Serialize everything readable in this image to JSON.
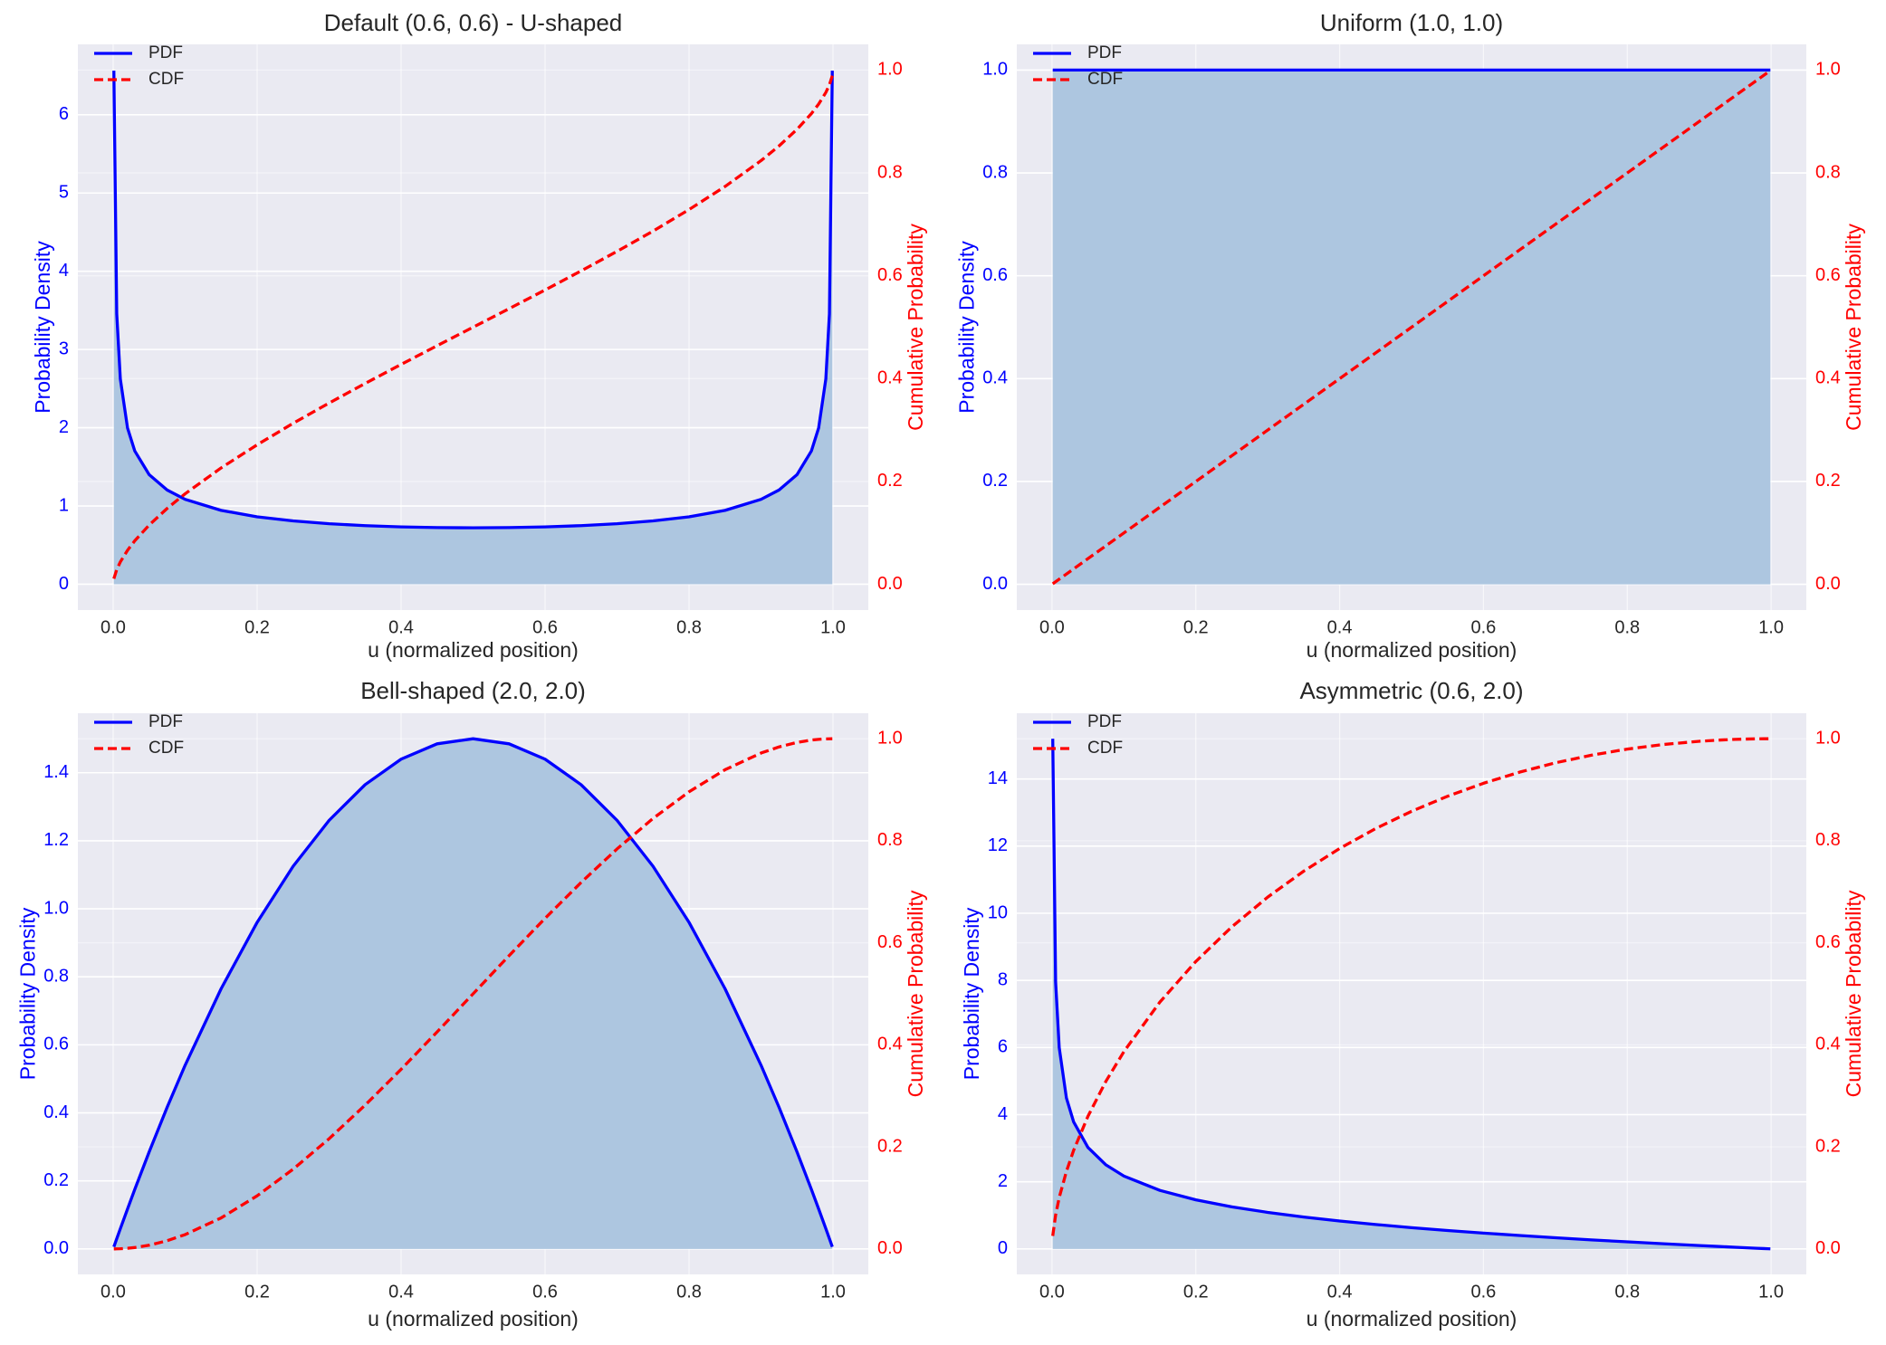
{
  "chart_data": [
    {
      "type": "line",
      "title": "Default (0.6, 0.6) - U-shaped",
      "xlabel": "u (normalized position)",
      "ylabel": "Probability Density",
      "y2label": "Cumulative Probability",
      "x": [
        0.001,
        0.005,
        0.01,
        0.02,
        0.03,
        0.05,
        0.075,
        0.1,
        0.15,
        0.2,
        0.25,
        0.3,
        0.35,
        0.4,
        0.45,
        0.5,
        0.55,
        0.6,
        0.65,
        0.7,
        0.75,
        0.8,
        0.85,
        0.9,
        0.925,
        0.95,
        0.97,
        0.98,
        0.99,
        0.995,
        0.999
      ],
      "series": [
        {
          "name": "PDF",
          "color": "#0000ff",
          "fill_color": "#adc6e0",
          "values": [
            6.564,
            3.454,
            2.623,
            1.996,
            1.704,
            1.401,
            1.204,
            1.085,
            0.944,
            0.862,
            0.809,
            0.773,
            0.749,
            0.733,
            0.724,
            0.721,
            0.724,
            0.733,
            0.749,
            0.773,
            0.809,
            0.862,
            0.944,
            1.085,
            1.204,
            1.401,
            1.704,
            1.996,
            2.623,
            3.454,
            6.564
          ]
        },
        {
          "name": "CDF",
          "color": "#ff0000",
          "axis": "y2",
          "linestyle": "dashed",
          "values": [
            0.0109,
            0.0287,
            0.0436,
            0.0662,
            0.0846,
            0.1152,
            0.1476,
            0.1761,
            0.2264,
            0.2713,
            0.3131,
            0.3525,
            0.3906,
            0.4276,
            0.464,
            0.5,
            0.536,
            0.5724,
            0.6094,
            0.6475,
            0.6869,
            0.7287,
            0.7736,
            0.8239,
            0.8524,
            0.8848,
            0.9154,
            0.9338,
            0.9564,
            0.9713,
            0.9891
          ]
        }
      ],
      "xlim": [
        -0.049,
        1.049
      ],
      "ylim": [
        -0.33,
        6.9
      ],
      "y2lim": [
        -0.05,
        1.05
      ],
      "xticks": [
        {
          "value": 0,
          "label": "0.0"
        },
        0.2,
        0.4,
        0.6,
        0.8,
        {
          "value": 1,
          "label": "1.0"
        }
      ],
      "yticks": [
        0,
        1,
        2,
        3,
        4,
        5,
        6
      ],
      "y2ticks": [
        {
          "value": 0,
          "label": "0.0"
        },
        0.2,
        0.4,
        0.6,
        0.8,
        {
          "value": 1,
          "label": "1.0"
        }
      ],
      "grid": true,
      "legend": "upper left"
    },
    {
      "type": "line",
      "title": "Uniform (1.0, 1.0)",
      "xlabel": "u (normalized position)",
      "ylabel": "Probability Density",
      "y2label": "Cumulative Probability",
      "x": [
        0.001,
        0.25,
        0.5,
        0.75,
        0.999
      ],
      "series": [
        {
          "name": "PDF",
          "color": "#0000ff",
          "fill_color": "#adc6e0",
          "values": [
            1,
            1,
            1,
            1,
            1
          ]
        },
        {
          "name": "CDF",
          "color": "#ff0000",
          "axis": "y2",
          "linestyle": "dashed",
          "values": [
            0.001,
            0.25,
            0.5,
            0.75,
            0.999
          ]
        }
      ],
      "xlim": [
        -0.049,
        1.049
      ],
      "ylim": [
        -0.05,
        1.05
      ],
      "y2lim": [
        -0.05,
        1.05
      ],
      "xticks": [
        {
          "value": 0,
          "label": "0.0"
        },
        0.2,
        0.4,
        0.6,
        0.8,
        {
          "value": 1,
          "label": "1.0"
        }
      ],
      "yticks": [
        {
          "value": 0,
          "label": "0.0"
        },
        0.2,
        0.4,
        0.6,
        0.8,
        {
          "value": 1,
          "label": "1.0"
        }
      ],
      "y2ticks": [
        {
          "value": 0,
          "label": "0.0"
        },
        0.2,
        0.4,
        0.6,
        0.8,
        {
          "value": 1,
          "label": "1.0"
        }
      ],
      "grid": true,
      "legend": "upper left"
    },
    {
      "type": "line",
      "title": "Bell-shaped (2.0, 2.0)",
      "xlabel": "u (normalized position)",
      "ylabel": "Probability Density",
      "y2label": "Cumulative Probability",
      "x": [
        0.001,
        0.005,
        0.01,
        0.02,
        0.03,
        0.05,
        0.075,
        0.1,
        0.15,
        0.2,
        0.25,
        0.3,
        0.35,
        0.4,
        0.45,
        0.5,
        0.55,
        0.6,
        0.65,
        0.7,
        0.75,
        0.8,
        0.85,
        0.9,
        0.925,
        0.95,
        0.97,
        0.98,
        0.99,
        0.995,
        0.999
      ],
      "series": [
        {
          "name": "PDF",
          "color": "#0000ff",
          "fill_color": "#adc6e0",
          "values": [
            0.006,
            0.0299,
            0.0594,
            0.1176,
            0.1746,
            0.285,
            0.4163,
            0.54,
            0.765,
            0.96,
            1.125,
            1.26,
            1.365,
            1.44,
            1.485,
            1.5,
            1.485,
            1.44,
            1.365,
            1.26,
            1.125,
            0.96,
            0.765,
            0.54,
            0.4163,
            0.285,
            0.1746,
            0.1176,
            0.0594,
            0.0299,
            0.006
          ]
        },
        {
          "name": "CDF",
          "color": "#ff0000",
          "axis": "y2",
          "linestyle": "dashed",
          "values": [
            3e-06,
            7.5e-05,
            0.000298,
            0.001184,
            0.002646,
            0.00725,
            0.016031,
            0.028,
            0.06075,
            0.104,
            0.15625,
            0.216,
            0.28175,
            0.352,
            0.42525,
            0.5,
            0.57475,
            0.648,
            0.71825,
            0.784,
            0.84375,
            0.896,
            0.93925,
            0.972,
            0.983969,
            0.99275,
            0.997354,
            0.998816,
            0.999702,
            0.999925,
            0.999997
          ]
        }
      ],
      "xlim": [
        -0.049,
        1.049
      ],
      "ylim": [
        -0.075,
        1.575
      ],
      "y2lim": [
        -0.05,
        1.05
      ],
      "xticks": [
        {
          "value": 0,
          "label": "0.0"
        },
        0.2,
        0.4,
        0.6,
        0.8,
        {
          "value": 1,
          "label": "1.0"
        }
      ],
      "yticks": [
        {
          "value": 0,
          "label": "0.0"
        },
        0.2,
        0.4,
        0.6,
        0.8,
        {
          "value": 1,
          "label": "1.0"
        },
        1.2,
        1.4
      ],
      "y2ticks": [
        {
          "value": 0,
          "label": "0.0"
        },
        0.2,
        0.4,
        0.6,
        0.8,
        {
          "value": 1,
          "label": "1.0"
        }
      ],
      "grid": true,
      "legend": "upper left"
    },
    {
      "type": "line",
      "title": "Asymmetric (0.6, 2.0)",
      "xlabel": "u (normalized position)",
      "ylabel": "Probability Density",
      "y2label": "Cumulative Probability",
      "x": [
        0.001,
        0.005,
        0.01,
        0.02,
        0.03,
        0.05,
        0.075,
        0.1,
        0.15,
        0.2,
        0.25,
        0.3,
        0.35,
        0.4,
        0.45,
        0.5,
        0.55,
        0.6,
        0.65,
        0.7,
        0.75,
        0.8,
        0.85,
        0.9,
        0.925,
        0.95,
        0.97,
        0.98,
        0.99,
        0.995,
        0.999
      ],
      "series": [
        {
          "name": "PDF",
          "color": "#0000ff",
          "fill_color": "#adc6e0",
          "values": [
            15.2,
            7.947,
            5.997,
            4.497,
            3.787,
            3.022,
            2.503,
            2.17,
            1.743,
            1.462,
            1.254,
            1.088,
            0.95,
            0.831,
            0.727,
            0.633,
            0.549,
            0.471,
            0.399,
            0.332,
            0.269,
            0.21,
            0.154,
            0.1,
            0.0743,
            0.049,
            0.0292,
            0.0194,
            0.00964,
            0.00481,
            0.00096
          ]
        },
        {
          "name": "CDF",
          "color": "#ff0000",
          "axis": "y2",
          "linestyle": "dashed",
          "values": [
            0.02535,
            0.0664,
            0.1006,
            0.1518,
            0.193,
            0.2601,
            0.3287,
            0.3868,
            0.4838,
            0.5634,
            0.6312,
            0.6896,
            0.7404,
            0.7849,
            0.8238,
            0.8578,
            0.8872,
            0.9127,
            0.9344,
            0.9528,
            0.9677,
            0.9797,
            0.9887,
            0.995,
            0.9972,
            0.9988,
            0.99955,
            0.9998,
            0.99996,
            1,
            1
          ]
        }
      ],
      "xlim": [
        -0.049,
        1.049
      ],
      "ylim": [
        -0.76,
        15.96
      ],
      "y2lim": [
        -0.05,
        1.05
      ],
      "xticks": [
        {
          "value": 0,
          "label": "0.0"
        },
        0.2,
        0.4,
        0.6,
        0.8,
        {
          "value": 1,
          "label": "1.0"
        }
      ],
      "yticks": [
        0,
        2,
        4,
        6,
        8,
        10,
        12,
        14
      ],
      "y2ticks": [
        {
          "value": 0,
          "label": "0.0"
        },
        0.2,
        0.4,
        0.6,
        0.8,
        {
          "value": 1,
          "label": "1.0"
        }
      ],
      "grid": true,
      "legend": "upper left"
    }
  ]
}
